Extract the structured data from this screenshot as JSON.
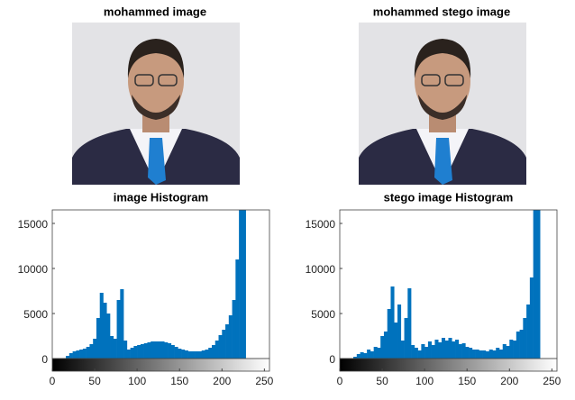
{
  "images": [
    {
      "title": "mohammed image"
    },
    {
      "title": "mohammed stego image"
    }
  ],
  "chart_data": [
    {
      "type": "histogram",
      "title": "image Histogram",
      "color": "#0072bd",
      "bins": [
        0,
        4,
        8,
        12,
        16,
        20,
        24,
        28,
        32,
        36,
        40,
        44,
        48,
        52,
        56,
        60,
        64,
        68,
        72,
        76,
        80,
        84,
        88,
        92,
        96,
        100,
        104,
        108,
        112,
        116,
        120,
        124,
        128,
        132,
        136,
        140,
        144,
        148,
        152,
        156,
        160,
        164,
        168,
        172,
        176,
        180,
        184,
        188,
        192,
        196,
        200,
        204,
        208,
        212,
        216,
        220,
        224,
        228,
        232,
        236,
        240,
        244,
        248,
        252,
        256
      ],
      "values": [
        0,
        0,
        0,
        50,
        300,
        600,
        800,
        900,
        1000,
        1100,
        1300,
        1600,
        2200,
        4500,
        7300,
        6200,
        5000,
        2500,
        2200,
        6500,
        7700,
        2000,
        1000,
        1200,
        1400,
        1500,
        1600,
        1700,
        1800,
        1900,
        1900,
        1900,
        1900,
        1800,
        1700,
        1500,
        1300,
        1100,
        1000,
        900,
        800,
        800,
        800,
        800,
        900,
        1000,
        1200,
        1500,
        2000,
        2600,
        3200,
        3800,
        4800,
        6500,
        11000,
        17000,
        17000,
        0,
        0,
        0,
        0,
        0,
        0,
        0
      ],
      "xlim": [
        0,
        256
      ],
      "ylim": [
        0,
        16500
      ],
      "xticks": [
        0,
        50,
        100,
        150,
        200,
        250
      ],
      "yticks": [
        0,
        5000,
        10000,
        15000
      ]
    },
    {
      "type": "histogram",
      "title": "stego image Histogram",
      "color": "#0072bd",
      "bins": [
        0,
        4,
        8,
        12,
        16,
        20,
        24,
        28,
        32,
        36,
        40,
        44,
        48,
        52,
        56,
        60,
        64,
        68,
        72,
        76,
        80,
        84,
        88,
        92,
        96,
        100,
        104,
        108,
        112,
        116,
        120,
        124,
        128,
        132,
        136,
        140,
        144,
        148,
        152,
        156,
        160,
        164,
        168,
        172,
        176,
        180,
        184,
        188,
        192,
        196,
        200,
        204,
        208,
        212,
        216,
        220,
        224,
        228,
        232,
        236,
        240,
        244,
        248,
        252,
        256
      ],
      "values": [
        0,
        0,
        0,
        0,
        200,
        500,
        700,
        600,
        1000,
        800,
        1300,
        1200,
        2500,
        3000,
        5500,
        8000,
        4000,
        6000,
        2000,
        4500,
        7800,
        1500,
        1200,
        900,
        1600,
        1300,
        1900,
        1500,
        2100,
        1800,
        2300,
        2000,
        2300,
        1900,
        2100,
        1600,
        1700,
        1300,
        1200,
        1000,
        1000,
        900,
        900,
        800,
        1000,
        900,
        1200,
        1000,
        1600,
        1400,
        2100,
        2000,
        3000,
        3200,
        4500,
        6000,
        9000,
        17000,
        17000,
        0,
        0,
        0,
        0,
        0
      ],
      "xlim": [
        0,
        256
      ],
      "ylim": [
        0,
        16500
      ],
      "xticks": [
        0,
        50,
        100,
        150,
        200,
        250
      ],
      "yticks": [
        0,
        5000,
        10000,
        15000
      ]
    }
  ]
}
